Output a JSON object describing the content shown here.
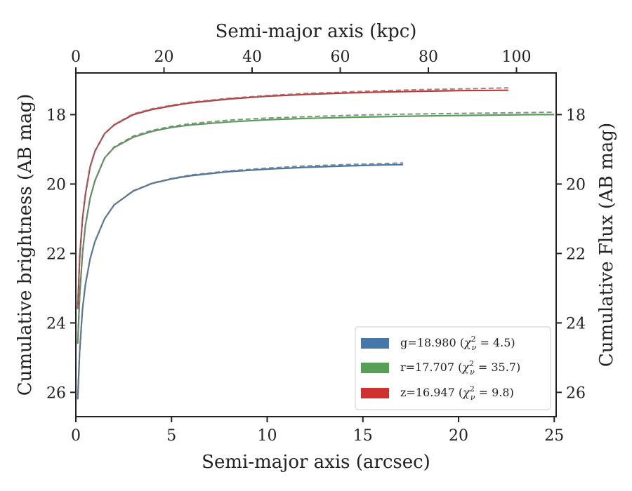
{
  "chart_data": {
    "type": "line",
    "xlabel": "Semi-major axis (arcsec)",
    "ylabel": "Cumulative brightness (AB mag)",
    "x2label": "Semi-major axis (kpc)",
    "y2label": "Cumulative Flux (AB mag)",
    "xlim": [
      0,
      25.1
    ],
    "ylim": [
      26.7,
      16.8
    ],
    "x2lim": [
      0,
      109
    ],
    "xticks": [
      0,
      5,
      10,
      15,
      20,
      25
    ],
    "yticks": [
      18,
      20,
      22,
      24,
      26
    ],
    "x2ticks": [
      0,
      20,
      40,
      60,
      80,
      100
    ],
    "grid": false,
    "legend_position": "lower-right",
    "series": [
      {
        "name": "g=18.980 (χ²ν = 4.5)",
        "legend_main": "g=18.980 (",
        "legend_sup": "2",
        "legend_sub": "ν",
        "legend_rest": " = 4.5)",
        "color": "#4477aa",
        "x": [
          0.1,
          0.2,
          0.35,
          0.5,
          0.75,
          1.0,
          1.5,
          2.0,
          3.0,
          4.0,
          5.0,
          6.0,
          8.0,
          10.0,
          12.0,
          14.0,
          16.0,
          17.1
        ],
        "y": [
          26.2,
          24.8,
          23.6,
          22.9,
          22.15,
          21.65,
          21.0,
          20.6,
          20.2,
          19.98,
          19.85,
          19.76,
          19.64,
          19.57,
          19.52,
          19.48,
          19.45,
          19.44
        ],
        "model_y": [
          26.2,
          24.8,
          23.6,
          22.9,
          22.15,
          21.65,
          21.0,
          20.6,
          20.19,
          19.97,
          19.84,
          19.74,
          19.62,
          19.54,
          19.48,
          19.44,
          19.41,
          19.39
        ]
      },
      {
        "name": "r=17.707 (χ²ν = 35.7)",
        "legend_main": "r=17.707 (",
        "legend_sup": "2",
        "legend_sub": "ν",
        "legend_rest": " = 35.7)",
        "color": "#55a055",
        "x": [
          0.1,
          0.2,
          0.35,
          0.5,
          0.75,
          1.0,
          1.5,
          2.0,
          3.0,
          4.0,
          5.0,
          6.0,
          8.0,
          10.0,
          12.0,
          15.0,
          18.0,
          21.0,
          24.0,
          25.0
        ],
        "y": [
          24.6,
          23.2,
          22.0,
          21.2,
          20.4,
          19.9,
          19.25,
          18.95,
          18.65,
          18.48,
          18.37,
          18.3,
          18.21,
          18.15,
          18.11,
          18.07,
          18.04,
          18.02,
          18.0,
          18.0
        ],
        "model_y": [
          24.6,
          23.2,
          22.0,
          21.2,
          20.4,
          19.9,
          19.25,
          18.93,
          18.62,
          18.45,
          18.34,
          18.26,
          18.16,
          18.1,
          18.06,
          18.01,
          17.98,
          17.96,
          17.94,
          17.93
        ]
      },
      {
        "name": "z=16.947 (χ²ν = 9.8)",
        "legend_main": "z=16.947 (",
        "legend_sup": "2",
        "legend_sub": "ν",
        "legend_rest": " = 9.8)",
        "color": "#d03030",
        "x": [
          0.1,
          0.2,
          0.35,
          0.5,
          0.75,
          1.0,
          1.5,
          2.0,
          3.0,
          4.0,
          5.0,
          6.0,
          8.0,
          10.0,
          12.0,
          14.0,
          16.0,
          18.0,
          20.0,
          22.6
        ],
        "y": [
          23.6,
          22.1,
          21.0,
          20.3,
          19.5,
          19.05,
          18.55,
          18.3,
          18.0,
          17.85,
          17.75,
          17.66,
          17.55,
          17.47,
          17.42,
          17.38,
          17.35,
          17.33,
          17.31,
          17.3
        ],
        "model_y": [
          23.6,
          22.1,
          21.0,
          20.3,
          19.5,
          19.05,
          18.55,
          18.29,
          17.98,
          17.83,
          17.73,
          17.64,
          17.53,
          17.45,
          17.39,
          17.35,
          17.31,
          17.28,
          17.26,
          17.23
        ]
      }
    ]
  }
}
